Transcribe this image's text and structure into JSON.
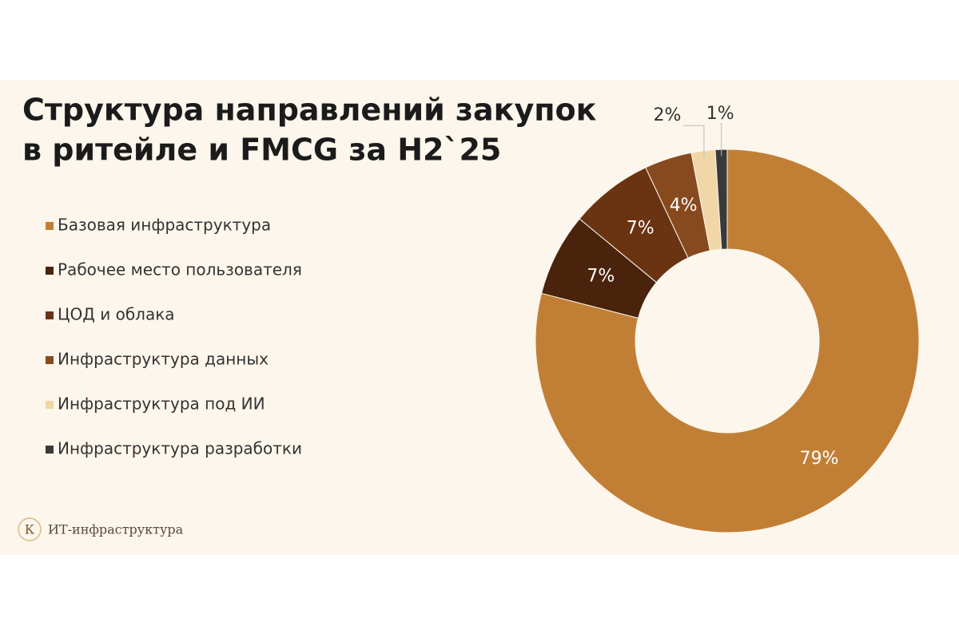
{
  "chart_data": {
    "type": "donut",
    "title": [
      "Структура направлений закупок",
      "в ритейле и FMCG за H2`25"
    ],
    "categories": [
      "Базовая инфраструктура",
      "Рабочее место пользователя",
      "ЦОД и облака",
      "Инфраструктура данных",
      "Инфраструктура под ИИ",
      "Инфраструктура разработки"
    ],
    "values": [
      79,
      7,
      7,
      4,
      2,
      1
    ],
    "value_labels": [
      "79%",
      "7%",
      "7%",
      "4%",
      "2%",
      "1%"
    ],
    "colors": [
      "#c17f36",
      "#4a230c",
      "#6a3312",
      "#874a1e",
      "#f1d6a8",
      "#3a3a3a"
    ],
    "legend": "left"
  },
  "footer": {
    "logo": "К",
    "text": "ИТ-инфраструктура"
  }
}
